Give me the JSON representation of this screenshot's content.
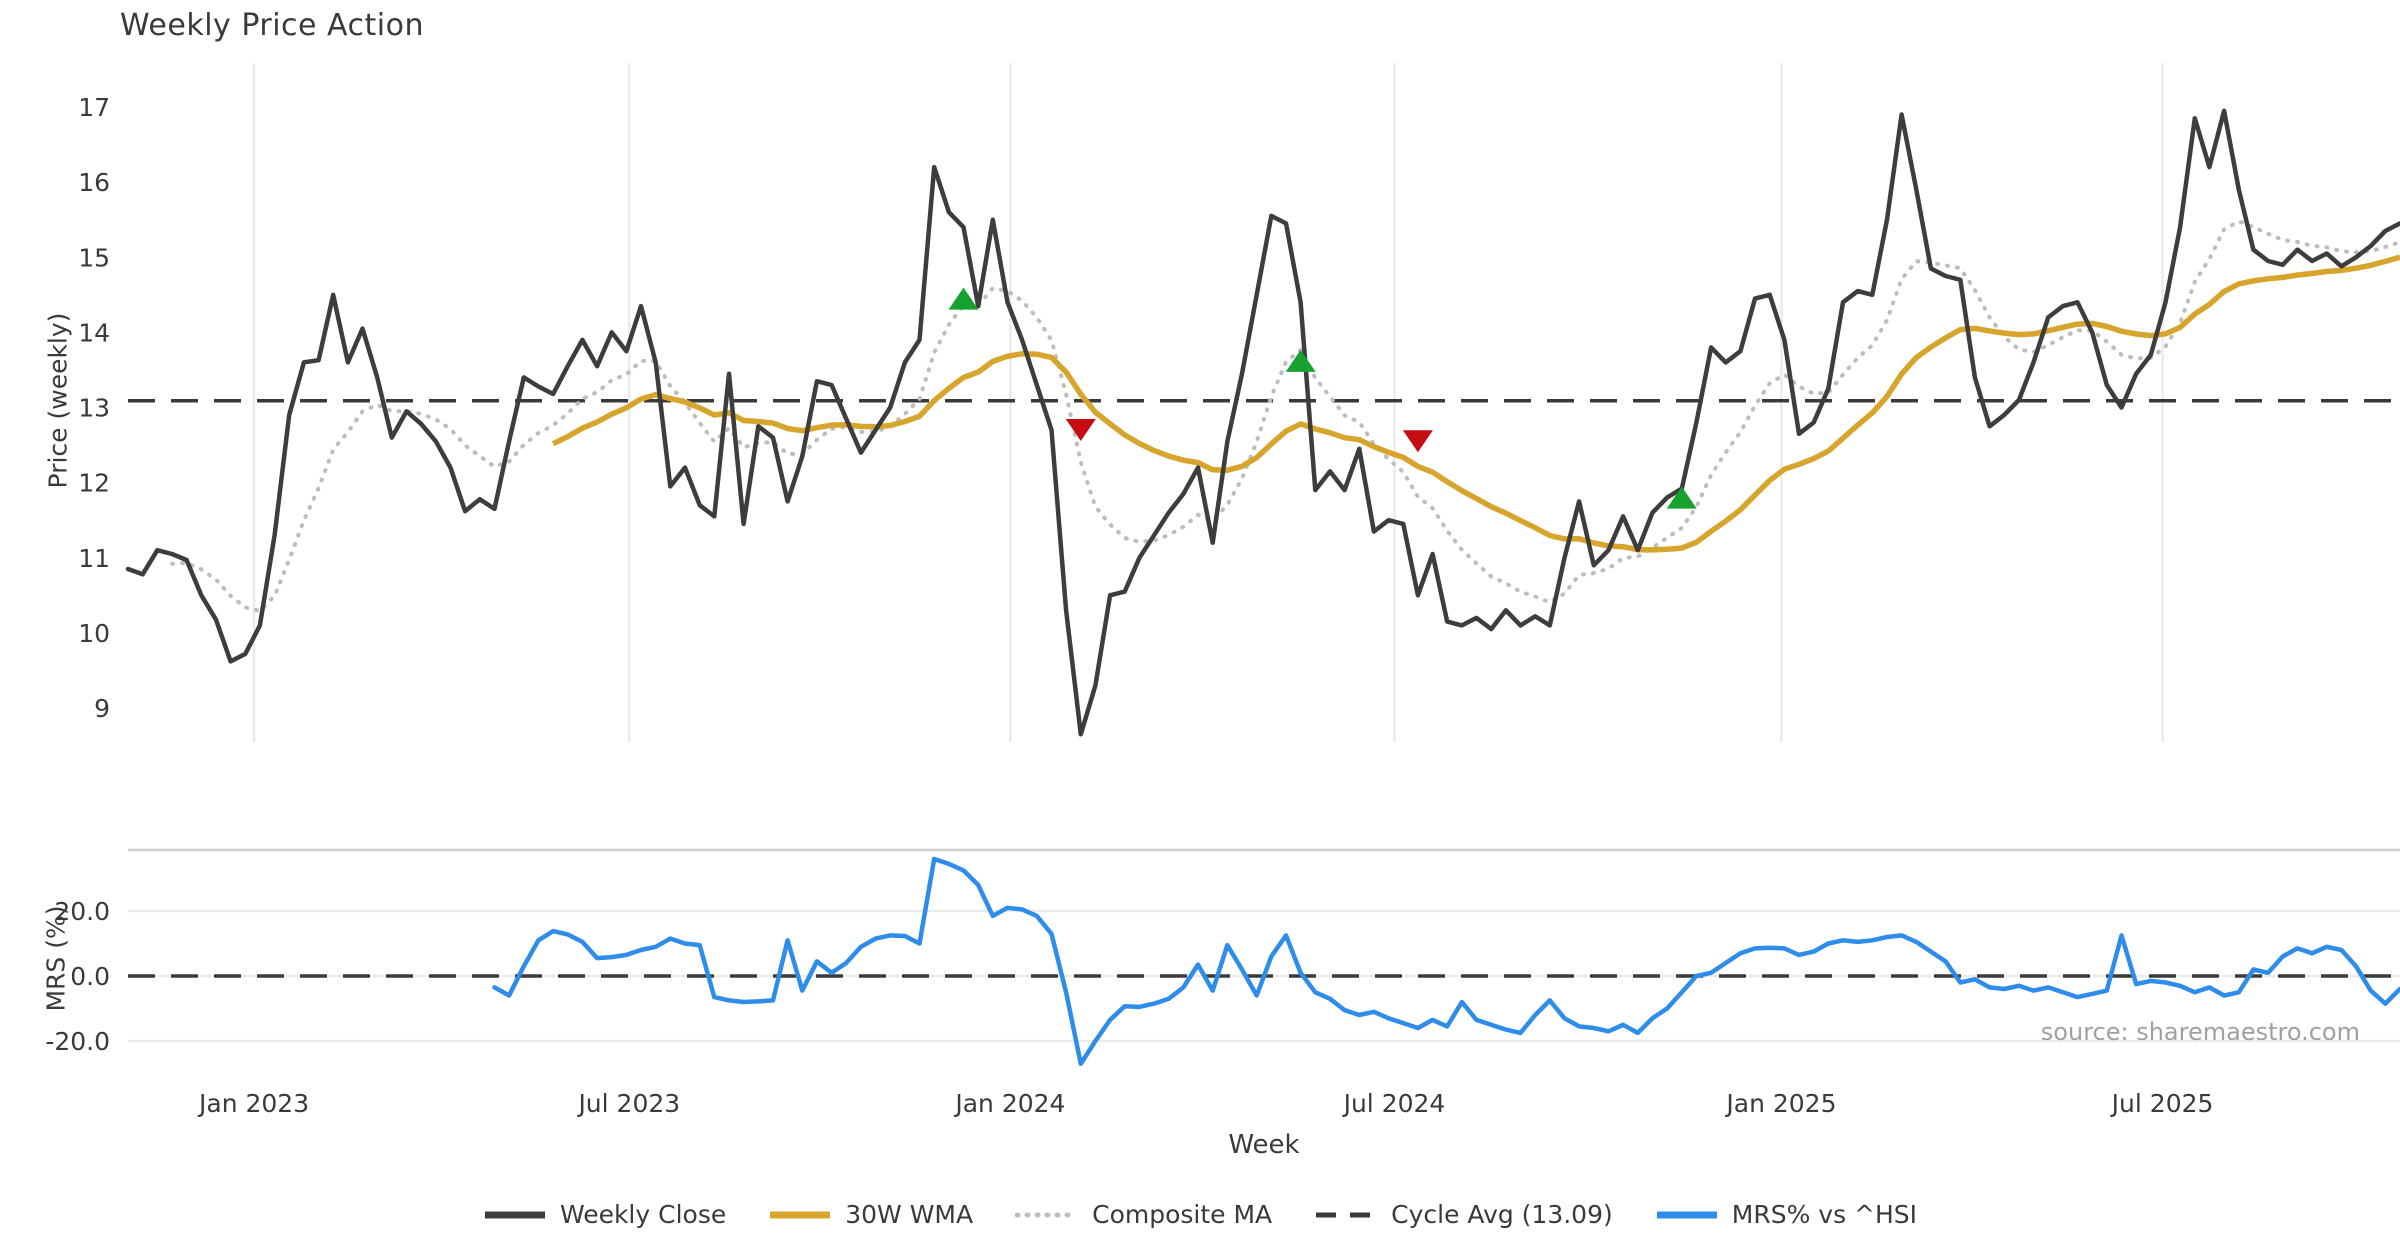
{
  "page": {
    "title": "Weekly Price Action",
    "source_note": "source: sharemaestro.com"
  },
  "colors": {
    "close": "#3d3d3d",
    "wma": "#d7a42c",
    "composite": "#bdbdbd",
    "cycle": "#3a3a3a",
    "mrs": "#2e8ceb",
    "buy": "#17a22f",
    "sell": "#c60d12",
    "grid": "#ebebeb",
    "mrs_spine": "#cccccc",
    "text": "#3a3a3a",
    "source": "#a0a0a0"
  },
  "chart_data": [
    {
      "type": "line",
      "panel": "price",
      "ylabel": "Price (weekly)",
      "xlabel": "Week",
      "ylim": [
        8.55,
        17.6
      ],
      "yticks": [
        17,
        16,
        15,
        14,
        13,
        12,
        11,
        10,
        9
      ],
      "xticks": [
        {
          "label": "Jan 2023",
          "week": 8.6
        },
        {
          "label": "Jul 2023",
          "week": 34.2
        },
        {
          "label": "Jan 2024",
          "week": 60.2
        },
        {
          "label": "Jul 2024",
          "week": 86.4
        },
        {
          "label": "Jan 2025",
          "week": 112.8
        },
        {
          "label": "Jul 2025",
          "week": 138.8
        }
      ],
      "grid": "vertical-only",
      "total_weeks": 155,
      "series": [
        {
          "name": "Weekly Close",
          "style": "solid",
          "color_key": "close",
          "start_week": 0,
          "values": [
            10.85,
            10.78,
            11.1,
            11.05,
            10.97,
            10.5,
            10.18,
            9.62,
            9.72,
            10.1,
            11.3,
            12.9,
            13.6,
            13.63,
            14.5,
            13.6,
            14.05,
            13.4,
            12.6,
            12.95,
            12.78,
            12.55,
            12.2,
            11.62,
            11.78,
            11.65,
            12.55,
            13.4,
            13.28,
            13.18,
            13.55,
            13.9,
            13.55,
            14.0,
            13.75,
            14.35,
            13.6,
            11.95,
            12.2,
            11.7,
            11.55,
            13.45,
            11.45,
            12.75,
            12.6,
            11.75,
            12.35,
            13.35,
            13.3,
            12.85,
            12.4,
            12.7,
            13.0,
            13.6,
            13.9,
            16.2,
            15.6,
            15.4,
            14.35,
            15.5,
            14.4,
            13.9,
            13.3,
            12.7,
            10.3,
            8.65,
            9.3,
            10.5,
            10.55,
            11.0,
            11.3,
            11.6,
            11.85,
            12.2,
            11.2,
            12.55,
            13.45,
            14.5,
            15.55,
            15.45,
            14.4,
            11.9,
            12.15,
            11.9,
            12.45,
            11.35,
            11.5,
            11.45,
            10.5,
            11.05,
            10.15,
            10.1,
            10.2,
            10.05,
            10.3,
            10.1,
            10.22,
            10.1,
            11.0,
            11.75,
            10.9,
            11.1,
            11.55,
            11.1,
            11.6,
            11.8,
            11.92,
            12.8,
            13.8,
            13.6,
            13.75,
            14.45,
            14.5,
            13.9,
            12.65,
            12.8,
            13.25,
            14.4,
            14.55,
            14.5,
            15.5,
            16.9,
            15.9,
            14.85,
            14.75,
            14.7,
            13.4,
            12.75,
            12.9,
            13.1,
            13.6,
            14.2,
            14.35,
            14.4,
            14.0,
            13.3,
            13.0,
            13.45,
            13.7,
            14.4,
            15.4,
            16.85,
            16.2,
            16.95,
            15.9,
            15.1,
            14.95,
            14.9,
            15.1,
            14.95,
            15.05,
            14.88,
            15.0,
            15.15,
            15.35,
            15.45
          ]
        },
        {
          "name": "30W WMA",
          "style": "solid",
          "color_key": "wma",
          "derived": "linear-weighted 30-week MA of Weekly Close",
          "window": 30
        },
        {
          "name": "Composite MA",
          "style": "dotted",
          "color_key": "composite",
          "derived": "EMA(alpha=0.2) of Weekly Close",
          "alpha": 0.2,
          "start_week": 3
        },
        {
          "name": "Cycle Avg (13.09)",
          "style": "dashed",
          "color_key": "cycle",
          "value": 13.09
        }
      ],
      "markers": [
        {
          "week": 57,
          "value": 14.45,
          "dir": "up",
          "name": "buy-signal"
        },
        {
          "week": 65,
          "value": 12.7,
          "dir": "down",
          "name": "sell-signal"
        },
        {
          "week": 80,
          "value": 13.62,
          "dir": "up",
          "name": "buy-signal"
        },
        {
          "week": 88,
          "value": 12.55,
          "dir": "down",
          "name": "sell-signal"
        },
        {
          "week": 106,
          "value": 11.8,
          "dir": "up",
          "name": "buy-signal"
        }
      ]
    },
    {
      "type": "line",
      "panel": "mrs",
      "ylabel": "MRS (%)",
      "ylim": [
        -31,
        38.8
      ],
      "yticks": [
        {
          "label": "20.0",
          "value": 20
        },
        {
          "label": "0.0",
          "value": 0
        },
        {
          "label": "-20.0",
          "value": -20
        }
      ],
      "zero_line_dashed": true,
      "series": [
        {
          "name": "MRS% vs ^HSI",
          "style": "solid",
          "color_key": "mrs",
          "start_week": 25,
          "values": [
            -3.5,
            -6.0,
            3.0,
            11.0,
            13.8,
            12.8,
            10.5,
            5.5,
            5.8,
            6.5,
            8.0,
            9.0,
            11.5,
            10.0,
            9.5,
            -6.5,
            -7.5,
            -8.0,
            -7.8,
            -7.5,
            11.0,
            -4.5,
            4.5,
            1.0,
            4.0,
            9.0,
            11.5,
            12.5,
            12.3,
            10.0,
            36.0,
            34.5,
            32.5,
            28.0,
            18.5,
            21.0,
            20.5,
            18.5,
            13.0,
            -5.0,
            -27.0,
            -20.0,
            -13.5,
            -9.3,
            -9.5,
            -8.5,
            -7.0,
            -3.5,
            3.5,
            -4.5,
            9.5,
            2.0,
            -6.0,
            6.0,
            12.5,
            1.0,
            -5.0,
            -7.0,
            -10.5,
            -12.0,
            -11.0,
            -13.0,
            -14.5,
            -16.0,
            -13.5,
            -15.5,
            -8.0,
            -13.5,
            -15.0,
            -16.5,
            -17.5,
            -12.0,
            -7.5,
            -13.0,
            -15.5,
            -16.0,
            -17.0,
            -15.0,
            -17.5,
            -13.0,
            -10.0,
            -5.0,
            0.0,
            1.0,
            4.0,
            7.0,
            8.5,
            8.7,
            8.5,
            6.5,
            7.5,
            10.0,
            11.0,
            10.5,
            11.0,
            12.0,
            12.5,
            10.5,
            7.5,
            4.5,
            -2.0,
            -1.0,
            -3.5,
            -4.0,
            -3.0,
            -4.5,
            -3.5,
            -5.0,
            -6.5,
            -5.5,
            -4.5,
            12.5,
            -2.5,
            -1.5,
            -2.0,
            -3.0,
            -5.0,
            -3.5,
            -6.0,
            -5.0,
            2.0,
            1.0,
            6.0,
            8.5,
            7.0,
            9.0,
            8.0,
            3.0,
            -4.5,
            -8.5,
            -4.0
          ]
        }
      ]
    }
  ],
  "legend": {
    "items": [
      {
        "label": "Weekly Close",
        "swatch": "solid",
        "color_key": "close"
      },
      {
        "label": "30W WMA",
        "swatch": "solid",
        "color_key": "wma"
      },
      {
        "label": "Composite MA",
        "swatch": "dotted",
        "color_key": "composite"
      },
      {
        "label": "Cycle Avg (13.09)",
        "swatch": "dashed",
        "color_key": "cycle"
      },
      {
        "label": "MRS% vs ^HSI",
        "swatch": "solid",
        "color_key": "mrs"
      }
    ]
  }
}
